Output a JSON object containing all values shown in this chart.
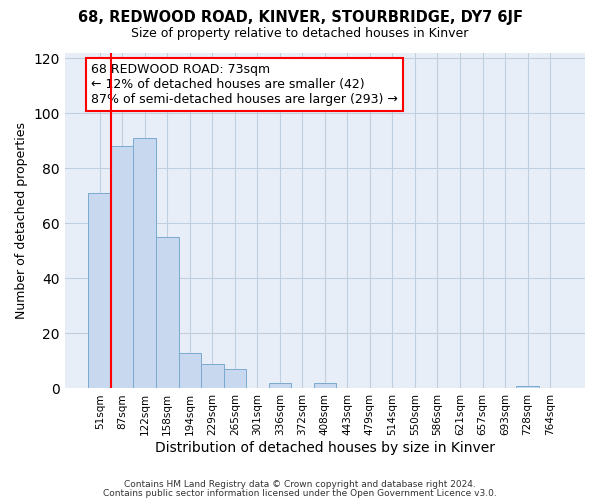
{
  "title": "68, REDWOOD ROAD, KINVER, STOURBRIDGE, DY7 6JF",
  "subtitle": "Size of property relative to detached houses in Kinver",
  "xlabel": "Distribution of detached houses by size in Kinver",
  "ylabel": "Number of detached properties",
  "bar_labels": [
    "51sqm",
    "87sqm",
    "122sqm",
    "158sqm",
    "194sqm",
    "229sqm",
    "265sqm",
    "301sqm",
    "336sqm",
    "372sqm",
    "408sqm",
    "443sqm",
    "479sqm",
    "514sqm",
    "550sqm",
    "586sqm",
    "621sqm",
    "657sqm",
    "693sqm",
    "728sqm",
    "764sqm"
  ],
  "bar_values": [
    71,
    88,
    91,
    55,
    13,
    9,
    7,
    0,
    2,
    0,
    2,
    0,
    0,
    0,
    0,
    0,
    0,
    0,
    0,
    1,
    0
  ],
  "bar_color": "#c8d8ee",
  "bar_edge_color": "#7aaad0",
  "annotation_box_text": "68 REDWOOD ROAD: 73sqm\n← 12% of detached houses are smaller (42)\n87% of semi-detached houses are larger (293) →",
  "annotation_box_edge_color": "red",
  "annotation_box_facecolor": "white",
  "vline_color": "red",
  "vline_x": 0.5,
  "ylim": [
    0,
    122
  ],
  "yticks": [
    0,
    20,
    40,
    60,
    80,
    100,
    120
  ],
  "grid_color": "#c0cfe0",
  "plot_bg_color": "#e8eef8",
  "fig_bg_color": "#ffffff",
  "footer_line1": "Contains HM Land Registry data © Crown copyright and database right 2024.",
  "footer_line2": "Contains public sector information licensed under the Open Government Licence v3.0."
}
